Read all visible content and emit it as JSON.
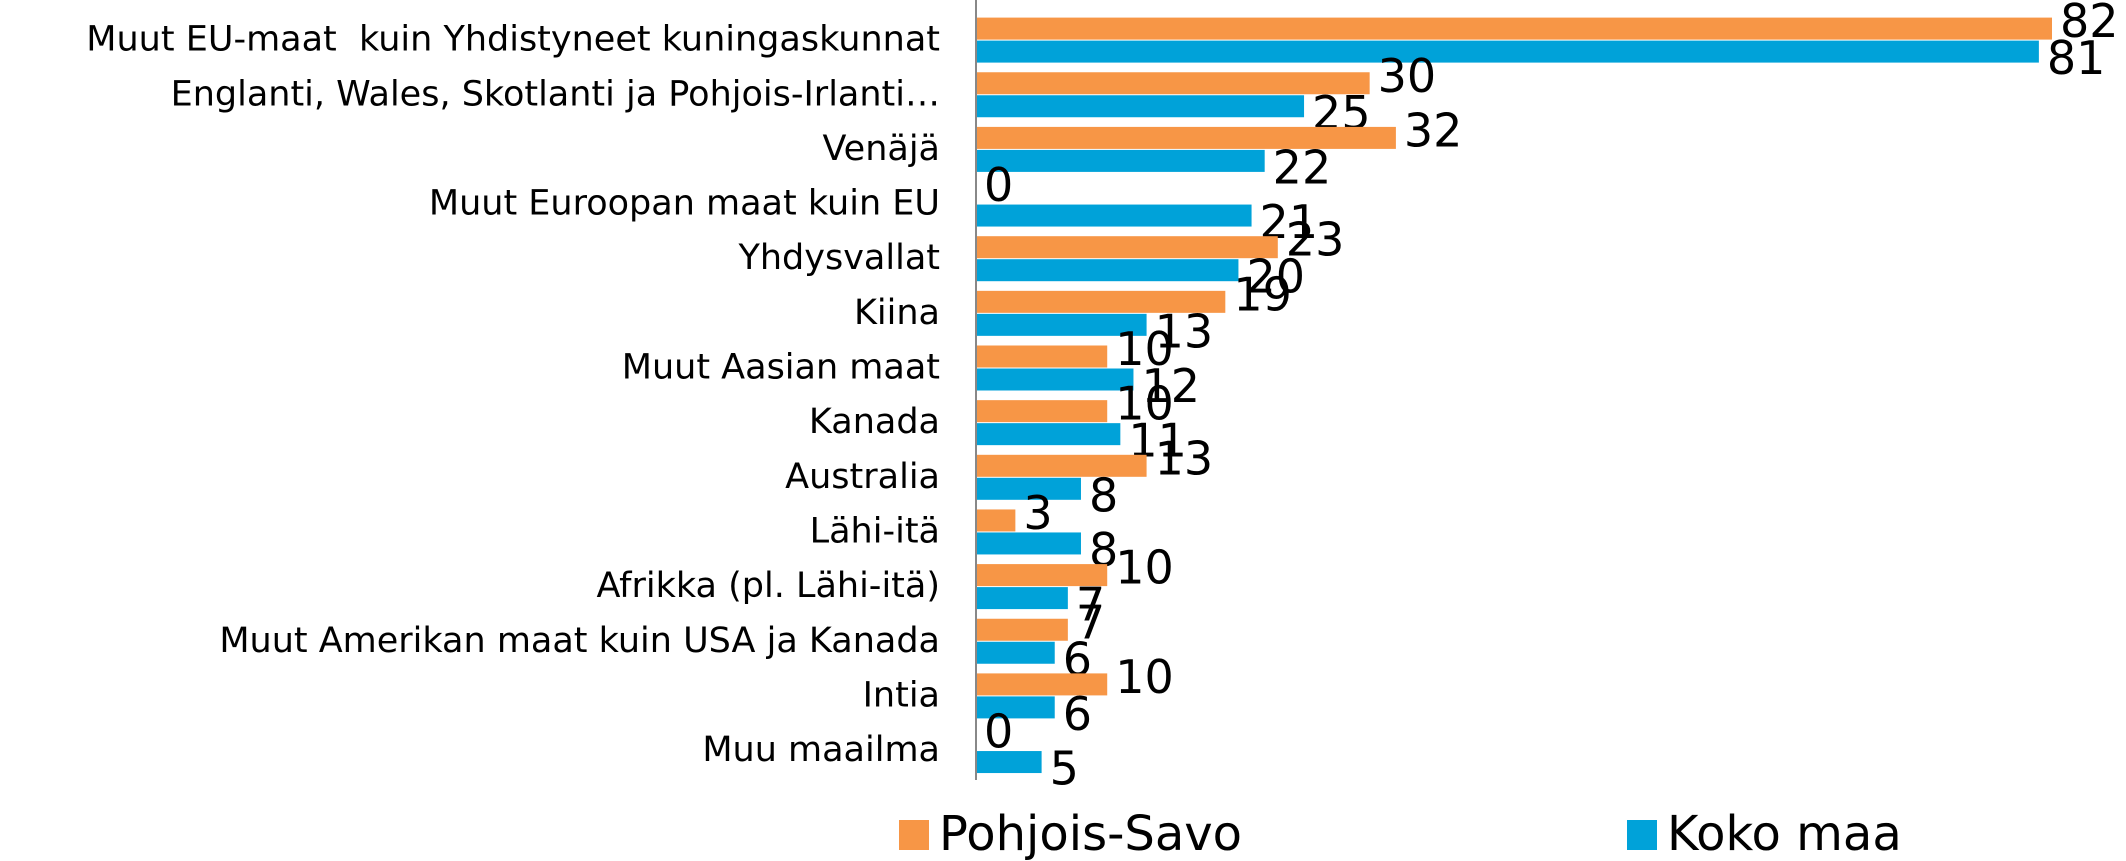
{
  "chart_data": {
    "type": "bar",
    "orientation": "horizontal",
    "categories": [
      "Muut EU-maat  kuin Yhdistyneet kuningaskunnat",
      "Englanti, Wales, Skotlanti ja Pohjois-Irlanti…",
      "Venäjä",
      "Muut Euroopan maat kuin EU",
      "Yhdysvallat",
      "Kiina",
      "Muut Aasian maat",
      "Kanada",
      "Australia",
      "Lähi-itä",
      "Afrikka (pl. Lähi-itä)",
      "Muut Amerikan maat kuin USA ja Kanada",
      "Intia",
      "Muu maailma"
    ],
    "series": [
      {
        "name": "Pohjois-Savo",
        "color": "#f79646",
        "values": [
          82,
          30,
          32,
          0,
          23,
          19,
          10,
          10,
          13,
          3,
          10,
          7,
          10,
          0
        ]
      },
      {
        "name": "Koko maa",
        "color": "#00a2d9",
        "values": [
          81,
          25,
          22,
          21,
          20,
          13,
          12,
          11,
          8,
          8,
          7,
          6,
          6,
          5
        ]
      }
    ],
    "legend": "bottom"
  }
}
